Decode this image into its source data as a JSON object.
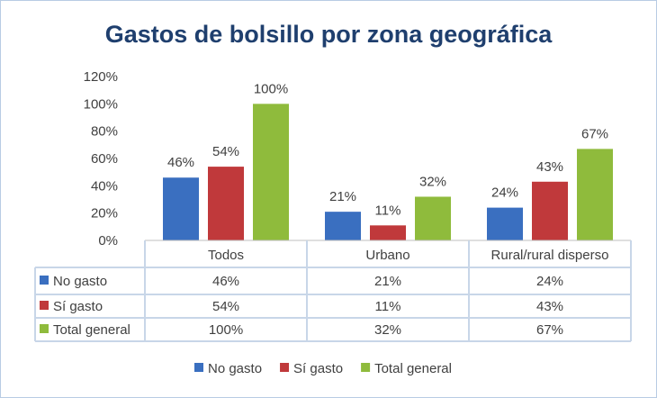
{
  "chart_data": {
    "type": "bar",
    "title": "Gastos de bolsillo por zona geográfica",
    "categories": [
      "Todos",
      "Urbano",
      "Rural/rural disperso"
    ],
    "series": [
      {
        "name": "No gasto",
        "values": [
          46,
          21,
          24
        ],
        "labels": [
          "46%",
          "21%",
          "24%"
        ],
        "color": "#3a6fc0"
      },
      {
        "name": "Sí gasto",
        "values": [
          54,
          11,
          43
        ],
        "labels": [
          "54%",
          "11%",
          "43%"
        ],
        "color": "#c0393b"
      },
      {
        "name": "Total general",
        "values": [
          100,
          32,
          67
        ],
        "labels": [
          "100%",
          "32%",
          "67%"
        ],
        "color": "#8fbb3c"
      }
    ],
    "ylim": [
      0,
      120
    ],
    "yticks": [
      "0%",
      "20%",
      "40%",
      "60%",
      "80%",
      "100%",
      "120%"
    ],
    "grid": false,
    "data_table": true,
    "legend": "bottom"
  }
}
